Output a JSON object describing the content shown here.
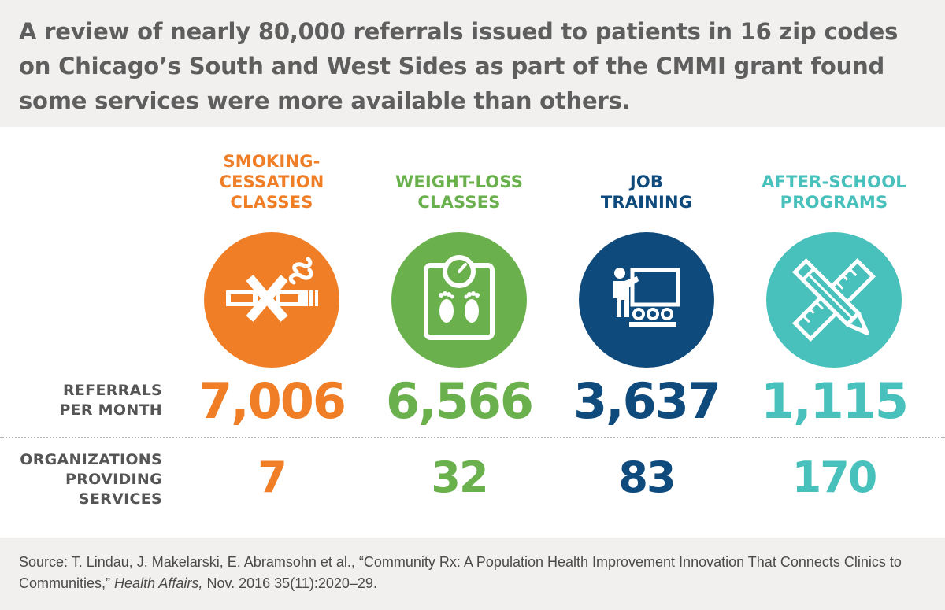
{
  "headline": "A review of nearly 80,000 referrals issued to patients in 16 zip codes on Chicago’s South and West Sides as part of the CMMI grant found some services were more available than others.",
  "row_labels": {
    "referrals": "REFERRALS\nPER MONTH",
    "organizations": "ORGANIZATIONS\nPROVIDING\nSERVICES"
  },
  "columns": [
    {
      "title": "SMOKING-\nCESSATION\nCLASSES",
      "referrals": "7,006",
      "organizations": "7",
      "color": "#f07e26",
      "icon": "no-smoking-icon"
    },
    {
      "title": "WEIGHT-LOSS\nCLASSES",
      "referrals": "6,566",
      "organizations": "32",
      "color": "#6ab04c",
      "icon": "scale-icon"
    },
    {
      "title": "JOB\nTRAINING",
      "referrals": "3,637",
      "organizations": "83",
      "color": "#0e4a7c",
      "icon": "presentation-icon"
    },
    {
      "title": "AFTER-SCHOOL\nPROGRAMS",
      "referrals": "1,115",
      "organizations": "170",
      "color": "#48c0bb",
      "icon": "pencil-ruler-icon"
    }
  ],
  "chart_data": {
    "type": "table",
    "columns": [
      "SMOKING-CESSATION CLASSES",
      "WEIGHT-LOSS CLASSES",
      "JOB TRAINING",
      "AFTER-SCHOOL PROGRAMS"
    ],
    "rows": [
      {
        "label": "REFERRALS PER MONTH",
        "values": [
          7006,
          6566,
          3637,
          1115
        ]
      },
      {
        "label": "ORGANIZATIONS PROVIDING SERVICES",
        "values": [
          7,
          32,
          83,
          170
        ]
      }
    ]
  },
  "source": {
    "prefix": "Source: T. Lindau, J. Makelarski, E. Abramsohn et al., “Community Rx: A Population Health Improvement Innovation That Connects Clinics to Communities,”",
    "journal": "Health Affairs,",
    "suffix": "Nov. 2016 35(11):2020–29."
  }
}
